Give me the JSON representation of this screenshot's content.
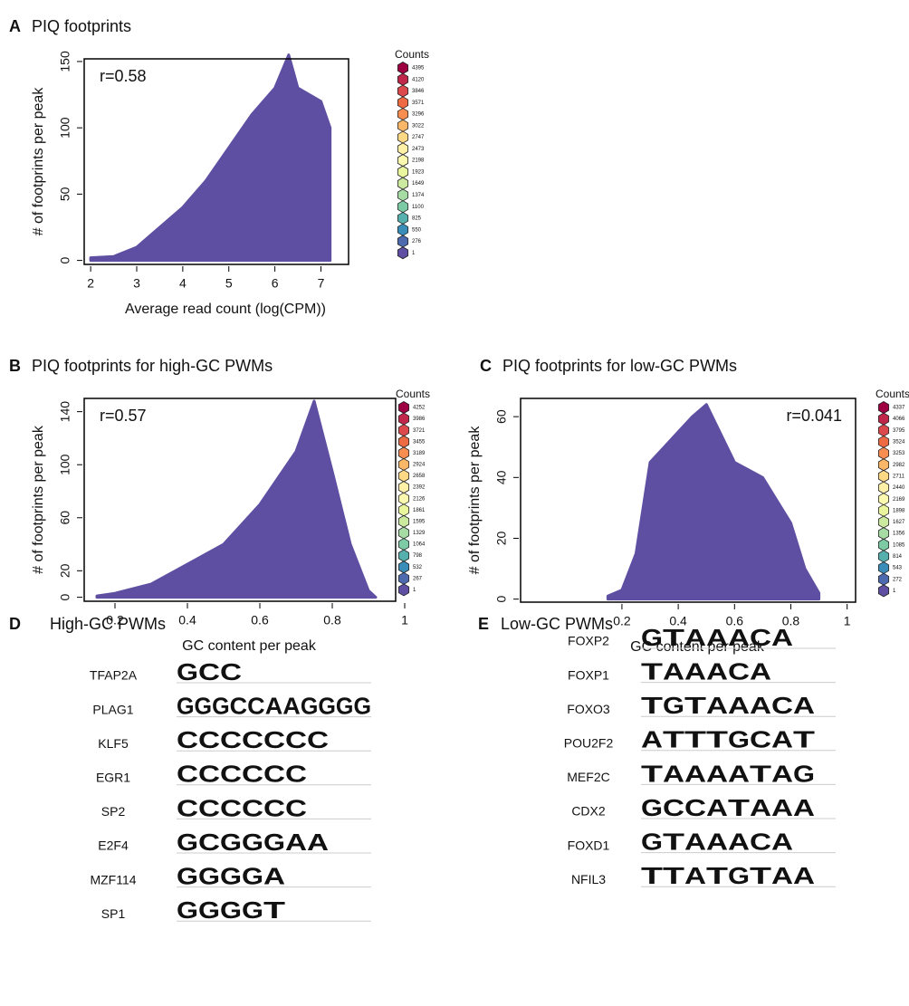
{
  "chart_data": [
    {
      "type": "hexbin",
      "panel": "A",
      "title": "PIQ  footprints",
      "annotation": "r=0.58",
      "xlabel": "Average read count (log(CPM))",
      "ylabel": "# of footprints per peak",
      "x": [
        2,
        2.5,
        3,
        3.5,
        4,
        4.5,
        5,
        5.5,
        6,
        6.3,
        6.5,
        7,
        7.2
      ],
      "values": [
        2,
        3,
        10,
        25,
        40,
        60,
        85,
        110,
        130,
        155,
        130,
        120,
        100
      ],
      "color": "#5e4fa2",
      "xlim": [
        1.86,
        7.6
      ],
      "xticks": [
        2,
        3,
        4,
        5,
        6,
        7
      ],
      "ylim": [
        -3,
        152
      ],
      "yticks": [
        0,
        50,
        100,
        150
      ],
      "legend_title": "Counts",
      "legend_levels": [
        4395,
        4120,
        3846,
        3571,
        3296,
        3022,
        2747,
        2473,
        2198,
        1923,
        1649,
        1374,
        1100,
        825,
        550,
        276,
        1
      ]
    },
    {
      "type": "hexbin",
      "panel": "B",
      "title": "PIQ footprints for high-GC PWMs",
      "annotation": "r=0.57",
      "xlabel": "GC content per peak",
      "ylabel": "# of footprints per peak",
      "x": [
        0.15,
        0.2,
        0.3,
        0.4,
        0.5,
        0.6,
        0.65,
        0.7,
        0.75,
        0.8,
        0.85,
        0.9,
        0.92
      ],
      "values": [
        1,
        3,
        10,
        25,
        40,
        70,
        90,
        110,
        148,
        95,
        40,
        5,
        0
      ],
      "color": "#5e4fa2",
      "xlim": [
        0.115,
        0.975
      ],
      "xticks": [
        0.2,
        0.4,
        0.6,
        0.8,
        1
      ],
      "ylim": [
        -3,
        150
      ],
      "yticks": [
        0,
        20,
        60,
        100,
        140
      ],
      "legend_title": "Counts",
      "legend_levels": [
        4252,
        3986,
        3721,
        3455,
        3189,
        2924,
        2658,
        2392,
        2126,
        1861,
        1595,
        1329,
        1064,
        798,
        532,
        267,
        1
      ]
    },
    {
      "type": "hexbin",
      "panel": "C",
      "title": "PIQ footprints for low-GC PWMs",
      "annotation": "r=0.041",
      "xlabel": "GC content per peak",
      "ylabel": "# of footprints per peak",
      "x": [
        0.15,
        0.2,
        0.25,
        0.3,
        0.35,
        0.4,
        0.45,
        0.5,
        0.6,
        0.7,
        0.8,
        0.85,
        0.9
      ],
      "values": [
        1,
        3,
        15,
        45,
        50,
        55,
        60,
        64,
        45,
        40,
        25,
        10,
        2
      ],
      "color": "#5e4fa2",
      "xlim": [
        -0.16,
        1.03
      ],
      "xticks": [
        0.2,
        0.4,
        0.6,
        0.8,
        1
      ],
      "ylim": [
        -1,
        66
      ],
      "yticks": [
        0,
        20,
        40,
        60
      ],
      "legend_title": "Counts",
      "legend_levels": [
        4337,
        4066,
        3795,
        3524,
        3253,
        2982,
        2711,
        2440,
        2169,
        1898,
        1627,
        1356,
        1085,
        814,
        543,
        272,
        1
      ]
    }
  ],
  "legend_colors": [
    "#9e0142",
    "#c0274a",
    "#dc494c",
    "#ee6a43",
    "#f88d51",
    "#fbb768",
    "#fdd985",
    "#fef0a7",
    "#fbf8b0",
    "#eaf69e",
    "#ccea9f",
    "#a6dba4",
    "#7dcba4",
    "#56b0ad",
    "#3b8db9",
    "#4d6aae",
    "#5e4fa2"
  ],
  "letter_colors": {
    "A": "#00c000",
    "C": "#0000ff",
    "G": "#ffa500",
    "T": "#ff0000"
  },
  "logos": [
    {
      "panel": "D",
      "title": "High-GC PWMs",
      "motifs": [
        {
          "name": "TFAP2A",
          "letters": [
            "G",
            "C",
            "C"
          ]
        },
        {
          "name": "PLAG1",
          "letters": [
            "G",
            "G",
            "G",
            "C",
            "C",
            "A",
            "A",
            "G",
            "G",
            "G",
            "G"
          ]
        },
        {
          "name": "KLF5",
          "letters": [
            "C",
            "C",
            "C",
            "C",
            "C",
            "C",
            "C"
          ]
        },
        {
          "name": "EGR1",
          "letters": [
            "C",
            "C",
            "C",
            "C",
            "C",
            "C"
          ]
        },
        {
          "name": "SP2",
          "letters": [
            "C",
            "C",
            "C",
            "C",
            "C",
            "C"
          ]
        },
        {
          "name": "E2F4",
          "letters": [
            "G",
            "C",
            "G",
            "G",
            "G",
            "A",
            "A"
          ]
        },
        {
          "name": "MZF114",
          "letters": [
            "G",
            "G",
            "G",
            "G",
            "A"
          ]
        },
        {
          "name": "SP1",
          "letters": [
            "G",
            "G",
            "G",
            "G",
            "T"
          ]
        }
      ]
    },
    {
      "panel": "E",
      "title": "Low-GC PWMs",
      "motifs": [
        {
          "name": "FOXP2",
          "letters": [
            "G",
            "T",
            "A",
            "A",
            "A",
            "C",
            "A"
          ]
        },
        {
          "name": "FOXP1",
          "letters": [
            "T",
            "A",
            "A",
            "A",
            "C",
            "A"
          ]
        },
        {
          "name": "FOXO3",
          "letters": [
            "T",
            "G",
            "T",
            "A",
            "A",
            "A",
            "C",
            "A"
          ]
        },
        {
          "name": "POU2F2",
          "letters": [
            "A",
            "T",
            "T",
            "T",
            "G",
            "C",
            "A",
            "T"
          ]
        },
        {
          "name": "MEF2C",
          "letters": [
            "T",
            "A",
            "A",
            "A",
            "A",
            "T",
            "A",
            "G"
          ]
        },
        {
          "name": "CDX2",
          "letters": [
            "G",
            "C",
            "C",
            "A",
            "T",
            "A",
            "A",
            "A"
          ]
        },
        {
          "name": "FOXD1",
          "letters": [
            "G",
            "T",
            "A",
            "A",
            "A",
            "C",
            "A"
          ]
        },
        {
          "name": "NFIL3",
          "letters": [
            "T",
            "T",
            "A",
            "T",
            "G",
            "T",
            "A",
            "A"
          ]
        }
      ]
    }
  ]
}
